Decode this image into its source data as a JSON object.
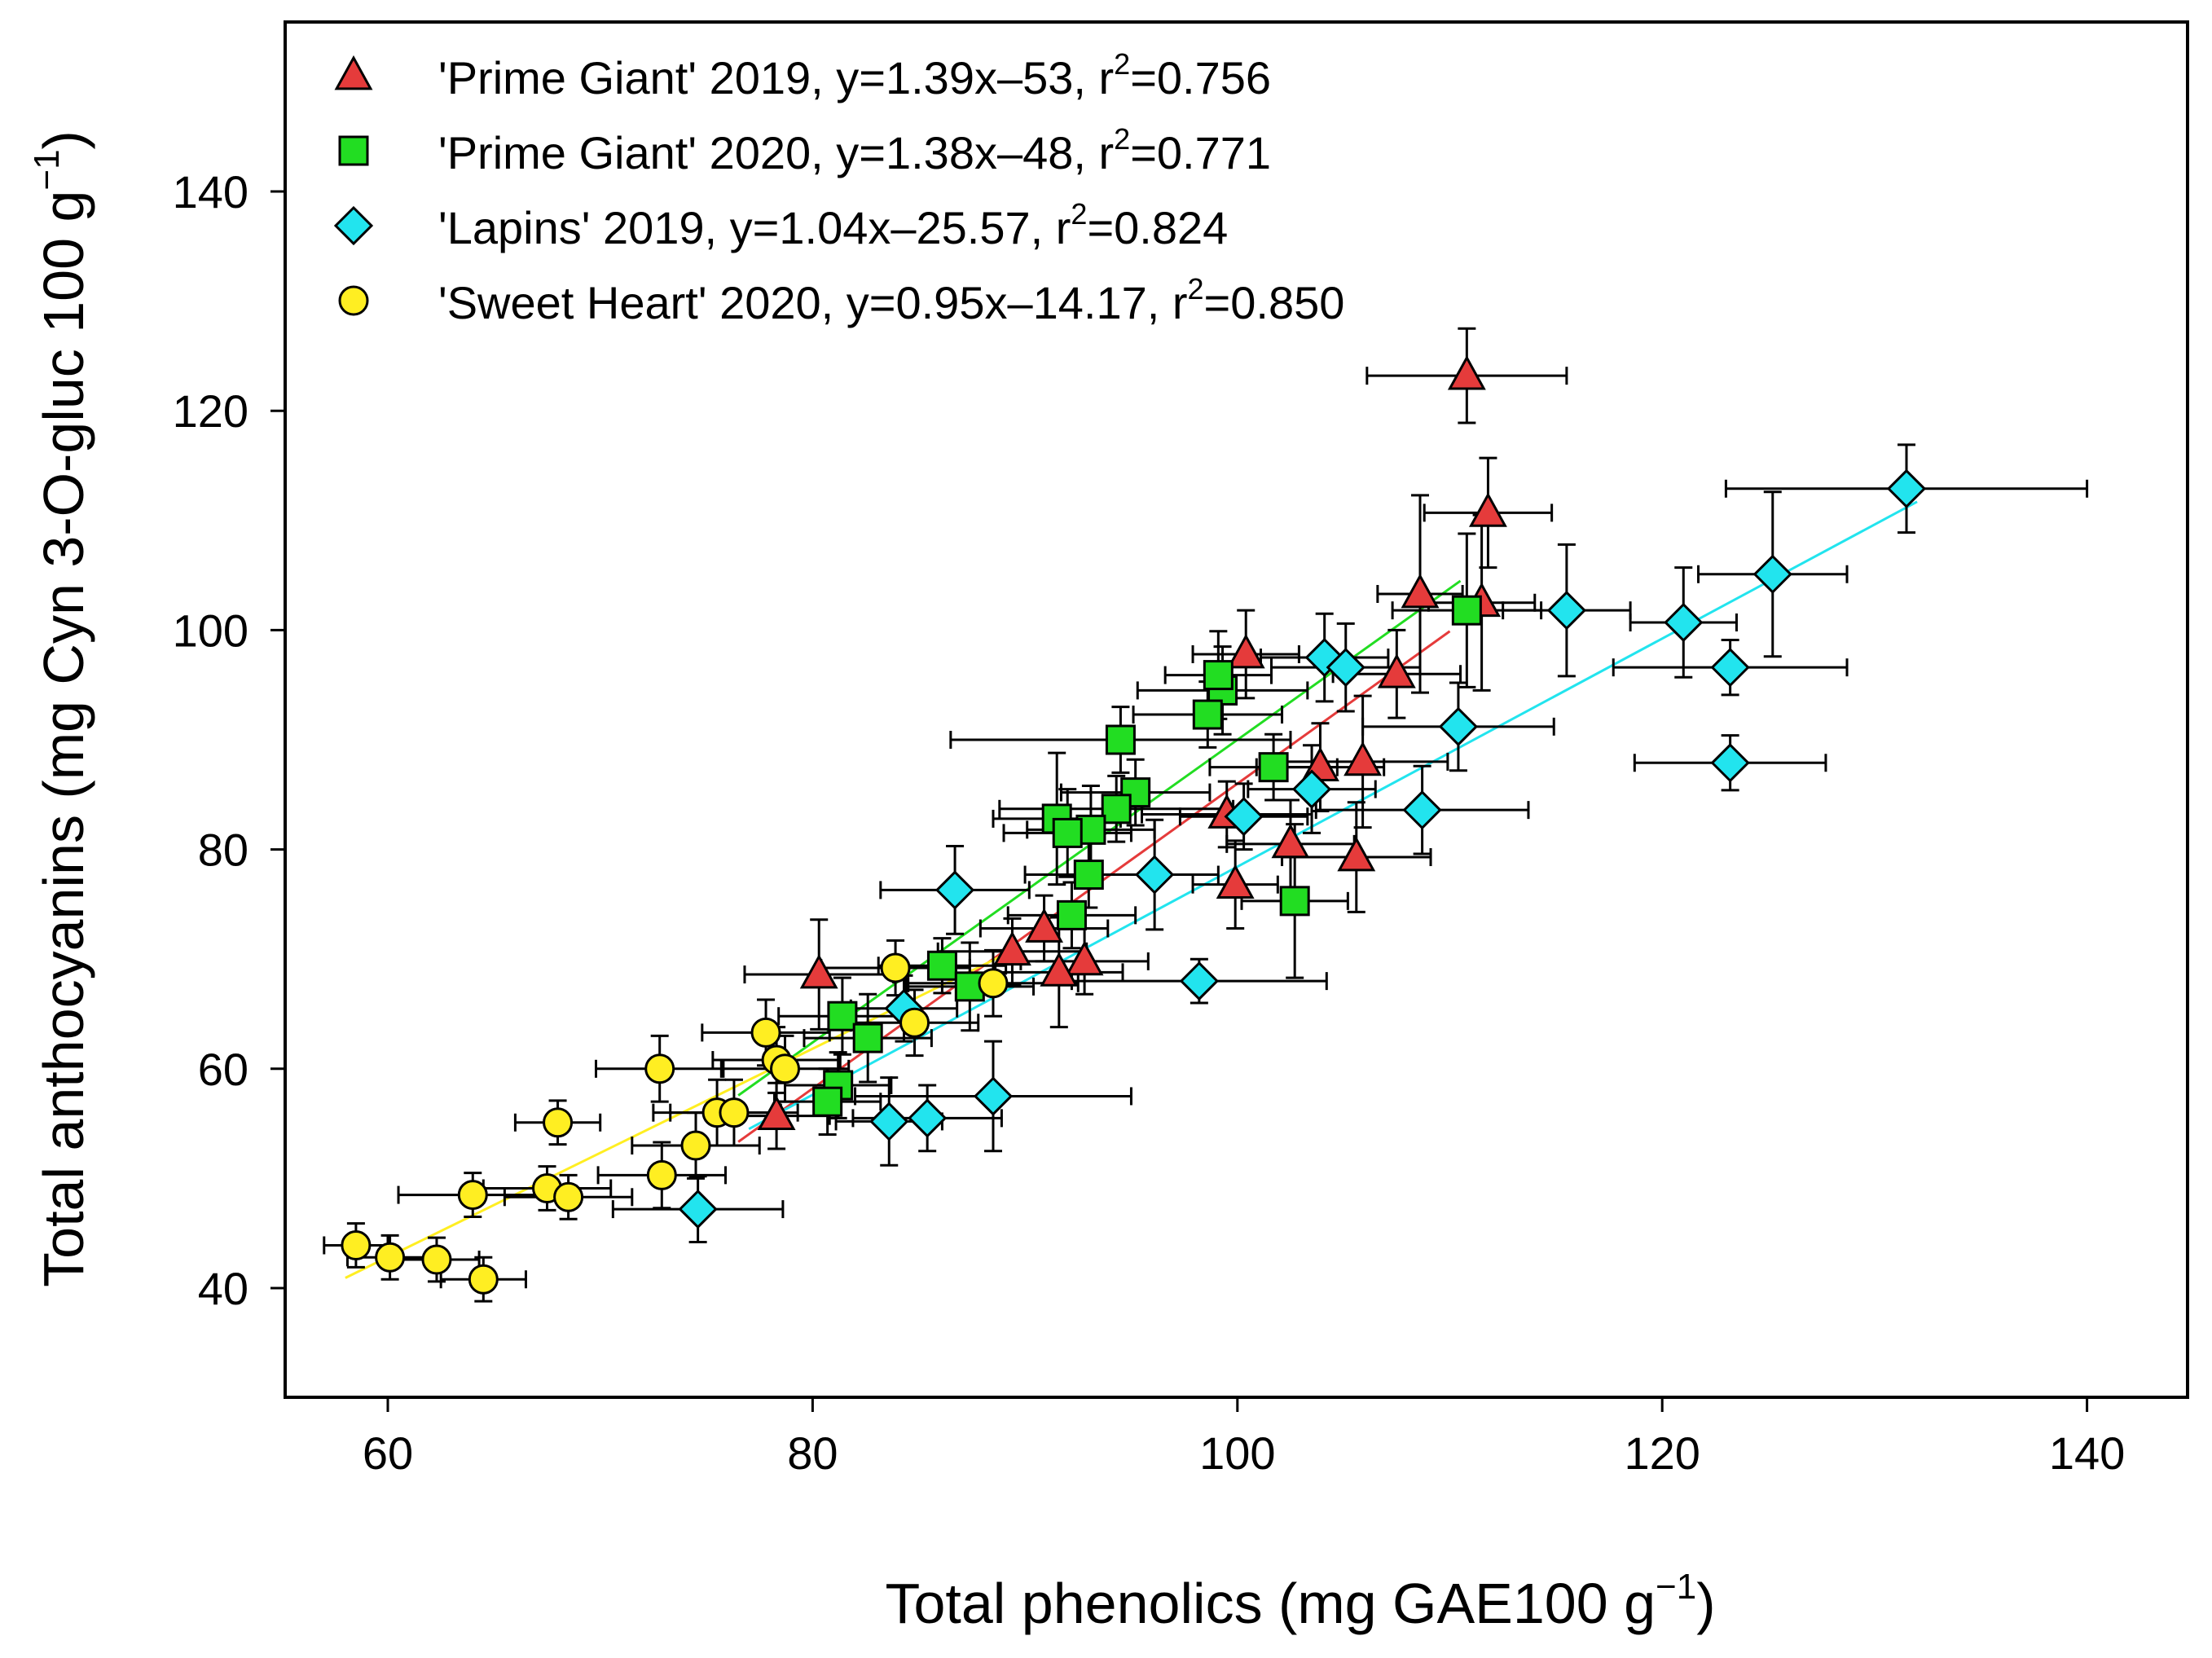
{
  "chart_data": {
    "type": "scatter",
    "title": "",
    "xlabel": "Total phenolics (mg GAE100 g",
    "xlabel_sup": "−1",
    "xlabel_end": ")",
    "ylabel": "Total anthocyanins (mg Cyn 3-O-gluc 100 g",
    "ylabel_sup": "−1",
    "ylabel_end": ")",
    "xlim": [
      55,
      144
    ],
    "ylim": [
      30,
      155
    ],
    "xticks": [
      60,
      80,
      100,
      120,
      140
    ],
    "yticks": [
      40,
      60,
      80,
      100,
      120,
      140
    ],
    "grid": false,
    "legend_position": "top-left",
    "series": [
      {
        "name": "'Prime Giant' 2019",
        "legend_text": "'Prime Giant' 2019, y=1.39x–53, r",
        "legend_r2": "=0.756",
        "marker": "triangle",
        "color": "#e53b3b",
        "fit": {
          "slope": 1.39,
          "intercept": -53,
          "x_range": [
            76.5,
            110
          ]
        },
        "points": [
          {
            "x": 110.8,
            "y": 123.2,
            "xerr": 4.7,
            "yerr": 4.3
          },
          {
            "x": 111.8,
            "y": 110.7,
            "xerr": 3,
            "yerr": 5
          },
          {
            "x": 108.6,
            "y": 103.3,
            "xerr": 2,
            "yerr": 9
          },
          {
            "x": 111.5,
            "y": 102.5,
            "xerr": 2.5,
            "yerr": 8
          },
          {
            "x": 100.4,
            "y": 97.8,
            "xerr": 2.5,
            "yerr": 4
          },
          {
            "x": 107.5,
            "y": 96,
            "xerr": 3,
            "yerr": 4
          },
          {
            "x": 105.9,
            "y": 88,
            "xerr": 4,
            "yerr": 6
          },
          {
            "x": 103.9,
            "y": 87.5,
            "xerr": 3,
            "yerr": 4
          },
          {
            "x": 99.5,
            "y": 83.2,
            "xerr": 4,
            "yerr": 3
          },
          {
            "x": 102.5,
            "y": 80.5,
            "xerr": 3,
            "yerr": 4
          },
          {
            "x": 105.6,
            "y": 79.3,
            "xerr": 3.5,
            "yerr": 5
          },
          {
            "x": 99.9,
            "y": 76.8,
            "xerr": 2,
            "yerr": 4
          },
          {
            "x": 90.9,
            "y": 72.8,
            "xerr": 3,
            "yerr": 3
          },
          {
            "x": 89.4,
            "y": 70.7,
            "xerr": 3.5,
            "yerr": 3
          },
          {
            "x": 92.8,
            "y": 69.8,
            "xerr": 3,
            "yerr": 3
          },
          {
            "x": 91.6,
            "y": 68.8,
            "xerr": 3,
            "yerr": 5
          },
          {
            "x": 80.3,
            "y": 68.6,
            "xerr": 3.5,
            "yerr": 5
          },
          {
            "x": 78.3,
            "y": 55.7,
            "xerr": 2.5,
            "yerr": 3
          }
        ]
      },
      {
        "name": "'Prime Giant' 2020",
        "legend_text": "'Prime Giant' 2020, y=1.38x–48, r",
        "legend_r2": "=0.771",
        "marker": "square",
        "color": "#22dd22",
        "fit": {
          "slope": 1.38,
          "intercept": -48,
          "x_range": [
            76.5,
            110.5
          ]
        },
        "points": [
          {
            "x": 110.8,
            "y": 101.8,
            "xerr": 3.5,
            "yerr": 7
          },
          {
            "x": 99.3,
            "y": 94.5,
            "xerr": 4,
            "yerr": 4
          },
          {
            "x": 99.1,
            "y": 95.9,
            "xerr": 2.5,
            "yerr": 4
          },
          {
            "x": 98.6,
            "y": 92.3,
            "xerr": 3.5,
            "yerr": 3
          },
          {
            "x": 94.5,
            "y": 90,
            "xerr": 8,
            "yerr": 3
          },
          {
            "x": 101.7,
            "y": 87.5,
            "xerr": 3,
            "yerr": 3
          },
          {
            "x": 95.2,
            "y": 85.2,
            "xerr": 3.5,
            "yerr": 3
          },
          {
            "x": 94.3,
            "y": 83.7,
            "xerr": 5.5,
            "yerr": 3
          },
          {
            "x": 91.5,
            "y": 82.8,
            "xerr": 3,
            "yerr": 6
          },
          {
            "x": 93.1,
            "y": 81.8,
            "xerr": 3,
            "yerr": 4
          },
          {
            "x": 92,
            "y": 81.5,
            "xerr": 3,
            "yerr": 4
          },
          {
            "x": 102.7,
            "y": 75.3,
            "xerr": 2.5,
            "yerr": 7
          },
          {
            "x": 93,
            "y": 77.7,
            "xerr": 3,
            "yerr": 3
          },
          {
            "x": 92.2,
            "y": 74,
            "xerr": 3,
            "yerr": 3
          },
          {
            "x": 86.1,
            "y": 69.4,
            "xerr": 3,
            "yerr": 2.5
          },
          {
            "x": 87.4,
            "y": 67.5,
            "xerr": 3,
            "yerr": 4
          },
          {
            "x": 81.4,
            "y": 64.8,
            "xerr": 3,
            "yerr": 3.5
          },
          {
            "x": 82.6,
            "y": 62.8,
            "xerr": 3,
            "yerr": 4
          },
          {
            "x": 81.2,
            "y": 58.5,
            "xerr": 2.5,
            "yerr": 3
          },
          {
            "x": 80.7,
            "y": 57,
            "xerr": 2.5,
            "yerr": 3
          }
        ]
      },
      {
        "name": "'Lapins' 2019",
        "legend_text": "'Lapins' 2019, y=1.04x–25.57, r",
        "legend_r2": "=0.824",
        "marker": "diamond",
        "color": "#22e4ee",
        "fit": {
          "slope": 1.04,
          "intercept": -25.57,
          "x_range": [
            77,
            132
          ]
        },
        "points": [
          {
            "x": 131.5,
            "y": 112.9,
            "xerr": 8.5,
            "yerr": 4
          },
          {
            "x": 125.2,
            "y": 105.1,
            "xerr": 3.5,
            "yerr": 7.5
          },
          {
            "x": 121,
            "y": 100.7,
            "xerr": 2.5,
            "yerr": 5
          },
          {
            "x": 115.5,
            "y": 101.8,
            "xerr": 3,
            "yerr": 6
          },
          {
            "x": 123.2,
            "y": 96.6,
            "xerr": 5.5,
            "yerr": 2.5
          },
          {
            "x": 123.2,
            "y": 87.9,
            "xerr": 4.5,
            "yerr": 2.5
          },
          {
            "x": 104.1,
            "y": 97.5,
            "xerr": 3,
            "yerr": 4
          },
          {
            "x": 105.1,
            "y": 96.6,
            "xerr": 3.5,
            "yerr": 4
          },
          {
            "x": 110.4,
            "y": 91.2,
            "xerr": 4.5,
            "yerr": 4
          },
          {
            "x": 103.5,
            "y": 85.5,
            "xerr": 3,
            "yerr": 4
          },
          {
            "x": 100.3,
            "y": 83,
            "xerr": 3,
            "yerr": 3
          },
          {
            "x": 108.7,
            "y": 83.6,
            "xerr": 5,
            "yerr": 4
          },
          {
            "x": 96.1,
            "y": 77.7,
            "xerr": 3,
            "yerr": 5
          },
          {
            "x": 86.7,
            "y": 76.3,
            "xerr": 3.5,
            "yerr": 4
          },
          {
            "x": 98.2,
            "y": 68,
            "xerr": 6,
            "yerr": 2
          },
          {
            "x": 84.3,
            "y": 65.5,
            "xerr": 2.5,
            "yerr": 3
          },
          {
            "x": 88.5,
            "y": 57.5,
            "xerr": 6.5,
            "yerr": 5
          },
          {
            "x": 83.6,
            "y": 55.2,
            "xerr": 2.5,
            "yerr": 4
          },
          {
            "x": 85.4,
            "y": 55.5,
            "xerr": 3.5,
            "yerr": 3
          },
          {
            "x": 74.6,
            "y": 47.2,
            "xerr": 4,
            "yerr": 3
          }
        ]
      },
      {
        "name": "'Sweet Heart' 2020",
        "legend_text": "'Sweet Heart' 2020, y=0.95x–14.17, r",
        "legend_r2": "=0.850",
        "marker": "circle",
        "color": "#ffee22",
        "fit": {
          "slope": 0.95,
          "intercept": -14.17,
          "x_range": [
            58,
            89
          ]
        },
        "points": [
          {
            "x": 83.9,
            "y": 69.2,
            "xerr": 3.5,
            "yerr": 2.5
          },
          {
            "x": 88.5,
            "y": 67.8,
            "xerr": 4,
            "yerr": 3
          },
          {
            "x": 84.8,
            "y": 64.2,
            "xerr": 3,
            "yerr": 3
          },
          {
            "x": 77.8,
            "y": 63.3,
            "xerr": 3,
            "yerr": 3
          },
          {
            "x": 72.8,
            "y": 60,
            "xerr": 3,
            "yerr": 3
          },
          {
            "x": 78.3,
            "y": 60.8,
            "xerr": 3,
            "yerr": 3
          },
          {
            "x": 78.7,
            "y": 60,
            "xerr": 3,
            "yerr": 3
          },
          {
            "x": 75.5,
            "y": 56,
            "xerr": 3,
            "yerr": 3
          },
          {
            "x": 76.3,
            "y": 56,
            "xerr": 3,
            "yerr": 3
          },
          {
            "x": 68,
            "y": 55.1,
            "xerr": 2,
            "yerr": 2
          },
          {
            "x": 74.5,
            "y": 53,
            "xerr": 3,
            "yerr": 3
          },
          {
            "x": 72.9,
            "y": 50.3,
            "xerr": 3,
            "yerr": 3
          },
          {
            "x": 64,
            "y": 48.5,
            "xerr": 3.5,
            "yerr": 2
          },
          {
            "x": 67.5,
            "y": 49.1,
            "xerr": 3,
            "yerr": 2
          },
          {
            "x": 68.5,
            "y": 48.3,
            "xerr": 3,
            "yerr": 2
          },
          {
            "x": 58.5,
            "y": 43.9,
            "xerr": 1.5,
            "yerr": 2
          },
          {
            "x": 60.1,
            "y": 42.8,
            "xerr": 2,
            "yerr": 2
          },
          {
            "x": 62.3,
            "y": 42.6,
            "xerr": 2,
            "yerr": 2
          },
          {
            "x": 64.5,
            "y": 40.8,
            "xerr": 2,
            "yerr": 2
          }
        ]
      }
    ]
  }
}
